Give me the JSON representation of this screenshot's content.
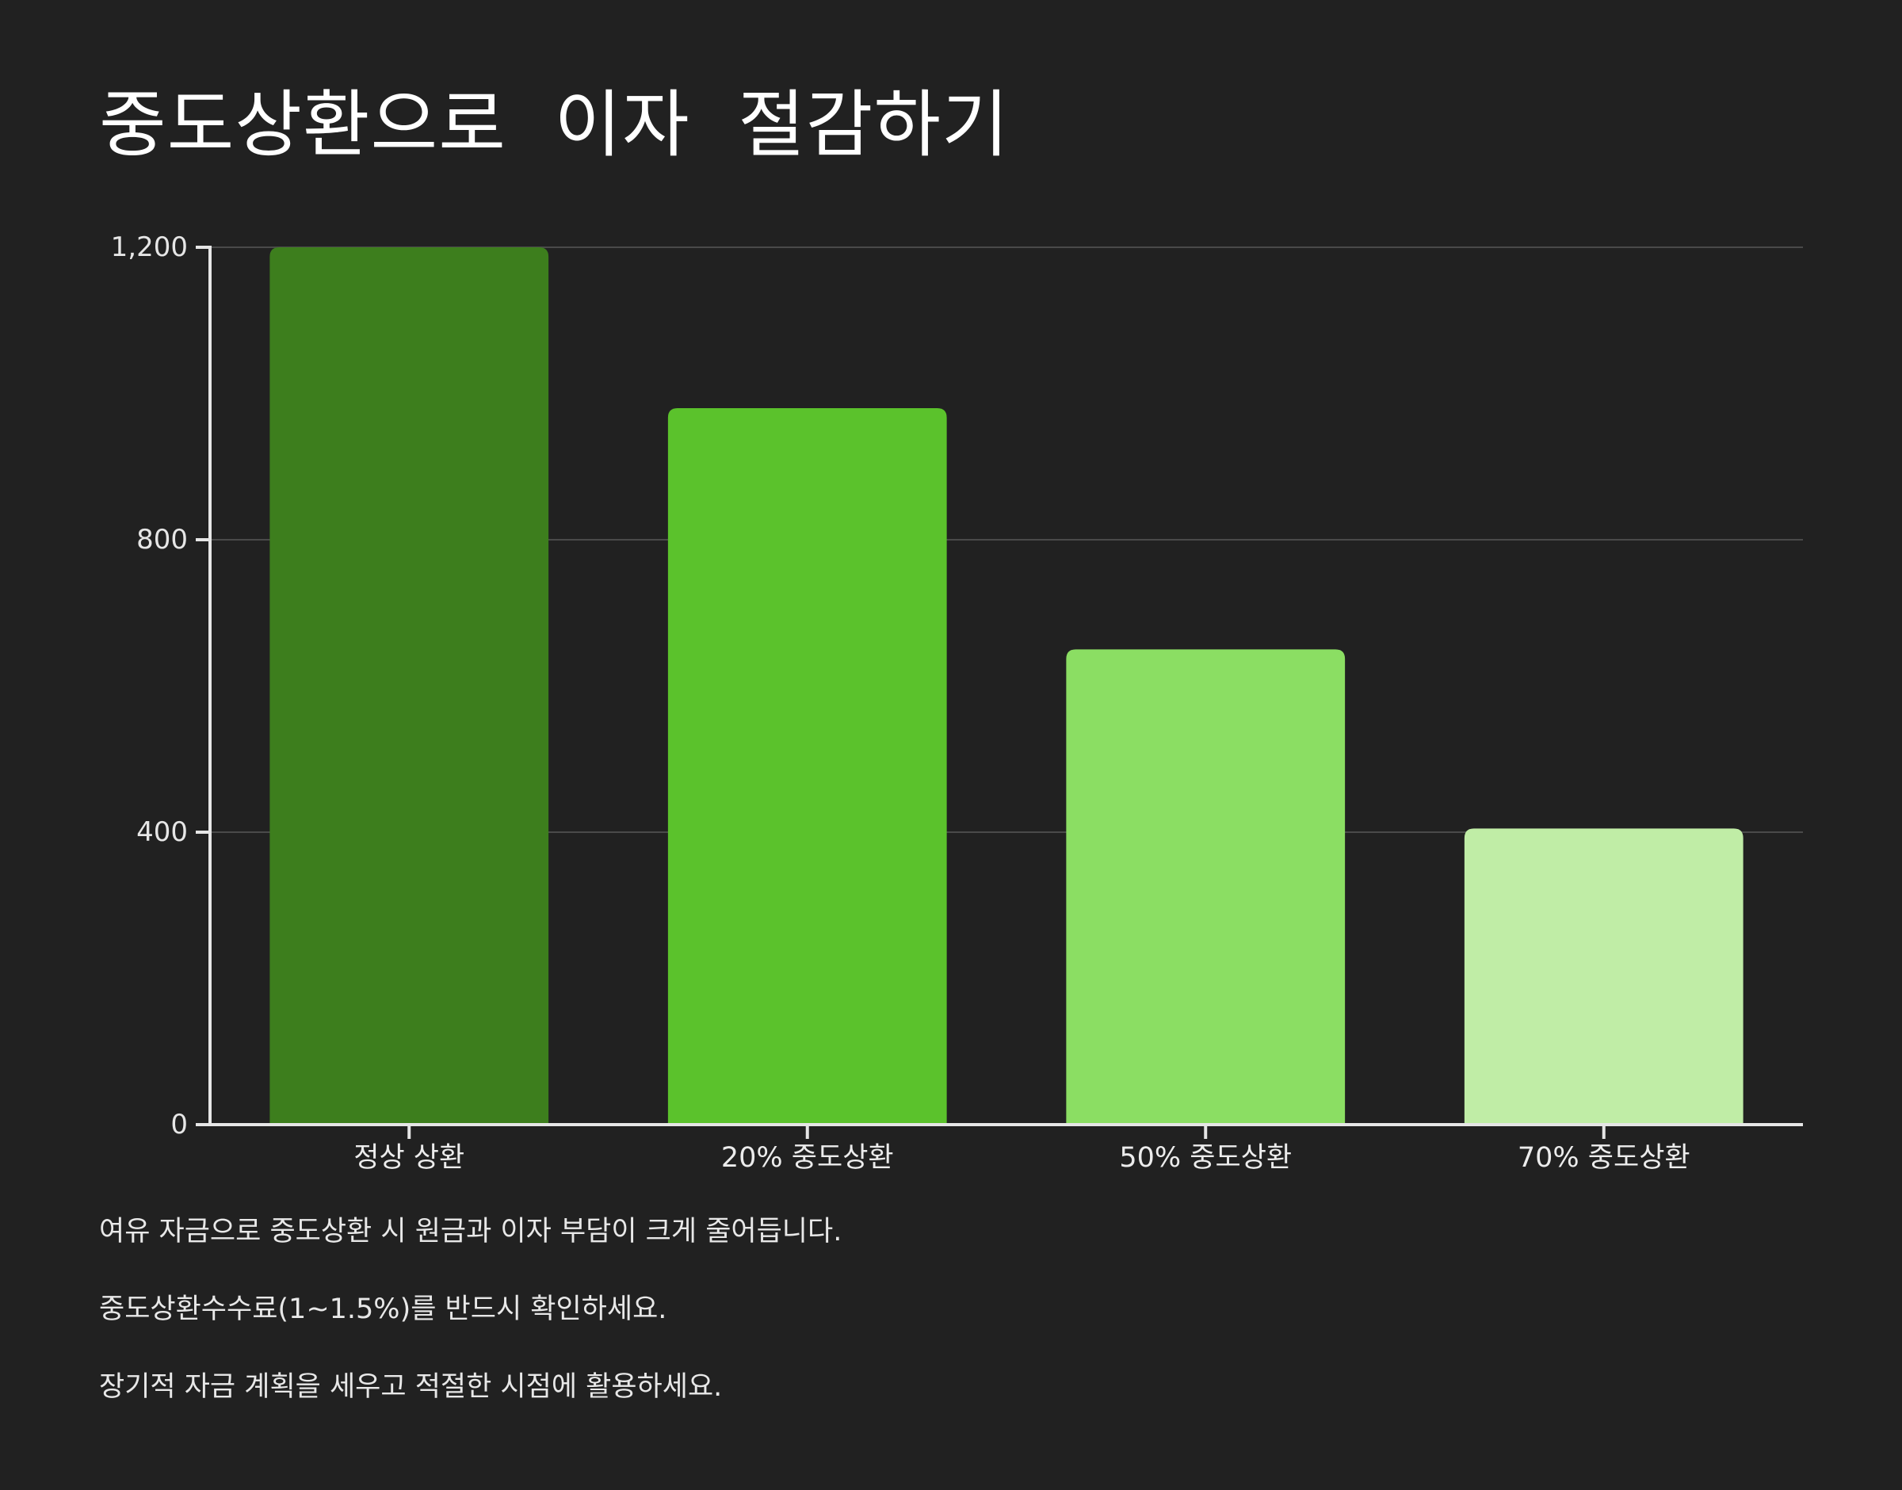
{
  "chart_data": {
    "type": "bar",
    "title": "중도상환으로  이자  절감하기",
    "categories": [
      "정상 상환",
      "20% 중도상환",
      "50% 중도상환",
      "70% 중도상환"
    ],
    "values": [
      1200,
      980,
      650,
      405
    ],
    "colors": [
      "#3d7e1d",
      "#5bc22c",
      "#8bde63",
      "#c0eda6"
    ],
    "ylim": [
      0,
      1200
    ],
    "yticks": [
      0,
      400,
      800,
      1200
    ],
    "ytick_labels": [
      "0",
      "400",
      "800",
      "1,200"
    ],
    "grid": true,
    "xlabel": "",
    "ylabel": ""
  },
  "notes": [
    "여유 자금으로 중도상환 시 원금과 이자 부담이 크게 줄어듭니다.",
    "중도상환수수료(1~1.5%)를 반드시 확인하세요.",
    "장기적 자금 계획을 세우고 적절한 시점에 활용하세요."
  ]
}
